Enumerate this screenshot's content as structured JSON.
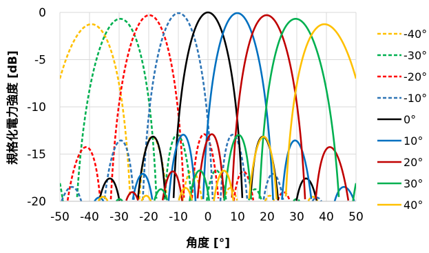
{
  "chart_data": {
    "type": "line",
    "title": "",
    "xlabel": "角度 [°]",
    "ylabel": "規格化電力強度 [dB]",
    "xlim": [
      -50,
      50
    ],
    "ylim": [
      -20,
      0
    ],
    "x_ticks": [
      "-50",
      "-40",
      "-30",
      "-20",
      "-10",
      "0",
      "10",
      "20",
      "30",
      "40",
      "50"
    ],
    "y_ticks": [
      "0",
      "-5",
      "-10",
      "-15",
      "-20"
    ],
    "grid": "vertical",
    "legend_position": "right",
    "series": [
      {
        "name": "-40°",
        "steer": -40,
        "peak": -2.2,
        "color": "#FFC000",
        "dashed": true,
        "side_lobes": [
          {
            "x": -48,
            "y": -16.3
          },
          {
            "x": -32.5,
            "y": -14.5
          }
        ]
      },
      {
        "name": "-30°",
        "steer": -30,
        "peak": -1.3,
        "color": "#00B050",
        "dashed": true,
        "side_lobes": [
          {
            "x": -36.8,
            "y": -15.0
          },
          {
            "x": -23.6,
            "y": -14.2
          }
        ]
      },
      {
        "name": "-20°",
        "steer": -20,
        "peak": -0.6,
        "color": "#FF0000",
        "dashed": true,
        "side_lobes": [
          {
            "x": -26.4,
            "y": -14.3
          },
          {
            "x": -14,
            "y": -13.6
          }
        ]
      },
      {
        "name": "-10°",
        "steer": -10,
        "peak": -0.2,
        "color": "#2E75B6",
        "dashed": true,
        "side_lobes": [
          {
            "x": -15.9,
            "y": -13.7
          },
          {
            "x": -4.3,
            "y": -13.4
          }
        ]
      },
      {
        "name": "0°",
        "steer": 0,
        "peak": 0.0,
        "color": "#000000",
        "dashed": false,
        "side_lobes": [
          {
            "x": -6,
            "y": -13.3
          },
          {
            "x": 6,
            "y": -13.3
          }
        ]
      },
      {
        "name": "10°",
        "steer": 10,
        "peak": -0.2,
        "color": "#0070C0",
        "dashed": false,
        "side_lobes": [
          {
            "x": 4.3,
            "y": -13.4
          },
          {
            "x": 15.9,
            "y": -13.7
          }
        ]
      },
      {
        "name": "20°",
        "steer": 20,
        "peak": -0.6,
        "color": "#C00000",
        "dashed": false,
        "side_lobes": [
          {
            "x": 14,
            "y": -13.6
          },
          {
            "x": 26.4,
            "y": -14.3
          }
        ]
      },
      {
        "name": "30°",
        "steer": 30,
        "peak": -1.3,
        "color": "#00B050",
        "dashed": false,
        "side_lobes": [
          {
            "x": 23.6,
            "y": -14.2
          },
          {
            "x": 36.8,
            "y": -15.0
          }
        ]
      },
      {
        "name": "40°",
        "steer": 40,
        "peak": -2.2,
        "color": "#FFC000",
        "dashed": false,
        "side_lobes": [
          {
            "x": 32.5,
            "y": -14.5
          },
          {
            "x": 48,
            "y": -16.3
          }
        ]
      }
    ]
  }
}
